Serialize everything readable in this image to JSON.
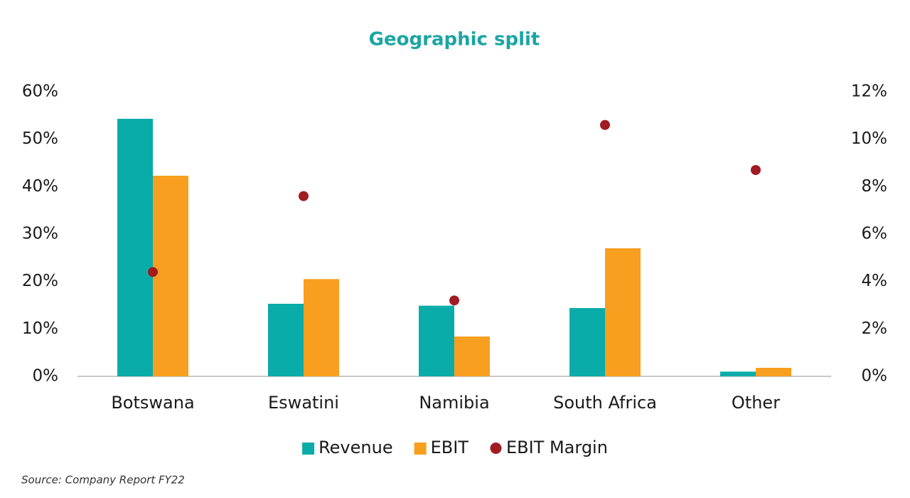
{
  "chart_data": {
    "type": "bar",
    "title": "Geographic split",
    "categories": [
      "Botswana",
      "Eswatini",
      "Namibia",
      "South Africa",
      "Other"
    ],
    "series": [
      {
        "name": "Revenue",
        "type": "bar",
        "color": "#0aaca9",
        "values": [
          54.3,
          15.3,
          14.9,
          14.4,
          1.0
        ]
      },
      {
        "name": "EBIT",
        "type": "bar",
        "color": "#f89f1f",
        "values": [
          42.3,
          20.5,
          8.4,
          27.0,
          1.8
        ]
      },
      {
        "name": "EBIT Margin",
        "type": "scatter",
        "color": "#a11b22",
        "axis": "y2",
        "values": [
          4.4,
          7.6,
          3.2,
          10.6,
          8.7
        ]
      }
    ],
    "ylim": [
      0,
      60
    ],
    "yticks": [
      {
        "value": 0,
        "label": "0%"
      },
      {
        "value": 10,
        "label": "10%"
      },
      {
        "value": 20,
        "label": "20%"
      },
      {
        "value": 30,
        "label": "30%"
      },
      {
        "value": 40,
        "label": "40%"
      },
      {
        "value": 50,
        "label": "50%"
      },
      {
        "value": 60,
        "label": "60%"
      }
    ],
    "y2lim": [
      0,
      12
    ],
    "y2ticks": [
      {
        "value": 0,
        "label": "0%"
      },
      {
        "value": 2,
        "label": "2%"
      },
      {
        "value": 4,
        "label": "4%"
      },
      {
        "value": 6,
        "label": "6%"
      },
      {
        "value": 8,
        "label": "8%"
      },
      {
        "value": 10,
        "label": "10%"
      },
      {
        "value": 12,
        "label": "12%"
      }
    ],
    "grid": false,
    "legend": "bottom",
    "source": "Source: Company Report FY22"
  }
}
